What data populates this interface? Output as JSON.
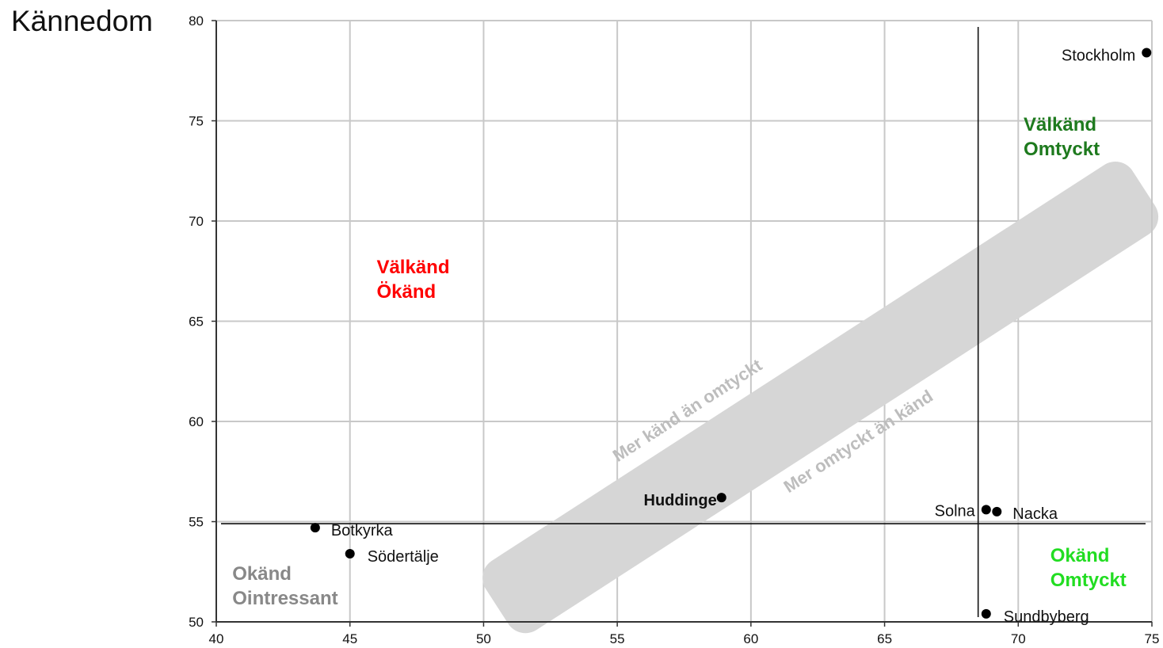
{
  "chart_data": {
    "type": "scatter",
    "title": "",
    "ylabel": "Kännedom",
    "xlabel": "",
    "xlim": [
      40,
      75
    ],
    "ylim": [
      50,
      80
    ],
    "grid": true,
    "x_ticks": [
      40,
      45,
      50,
      55,
      60,
      65,
      70,
      75
    ],
    "y_ticks": [
      50,
      55,
      60,
      65,
      70,
      75,
      80
    ],
    "points": [
      {
        "label": "Stockholm",
        "x": 74.8,
        "y": 78.4,
        "bold": false
      },
      {
        "label": "Solna",
        "x": 68.8,
        "y": 55.6,
        "bold": false
      },
      {
        "label": "Nacka",
        "x": 69.2,
        "y": 55.5,
        "bold": false
      },
      {
        "label": "Sundbyberg",
        "x": 68.8,
        "y": 50.4,
        "bold": false
      },
      {
        "label": "Huddinge",
        "x": 58.9,
        "y": 56.2,
        "bold": true
      },
      {
        "label": "Botkyrka",
        "x": 43.7,
        "y": 54.7,
        "bold": false
      },
      {
        "label": "Södertälje",
        "x": 45.0,
        "y": 53.4,
        "bold": false
      }
    ],
    "reference_lines": {
      "x": 68.5,
      "y": 54.9
    },
    "quadrant_labels": [
      {
        "lines": [
          "Välkänd",
          "Omtyckt"
        ],
        "color": "#1e7a1e",
        "x": 70.2,
        "y": 74.5
      },
      {
        "lines": [
          "Välkänd",
          "Ökänd"
        ],
        "color": "#ff0000",
        "x": 46.0,
        "y": 67.4
      },
      {
        "lines": [
          "Okänd",
          "Omtyckt"
        ],
        "color": "#22dd22",
        "x": 71.2,
        "y": 53.0
      },
      {
        "lines": [
          "Okänd",
          "Ointressant"
        ],
        "color": "#888888",
        "x": 40.6,
        "y": 52.1
      }
    ],
    "diagonal_band": {
      "labels": [
        "Mer känd än omtyckt",
        "Mer omtyckt än känd"
      ],
      "color": "#d6d6d6",
      "text_color": "#bdbdbd"
    }
  }
}
